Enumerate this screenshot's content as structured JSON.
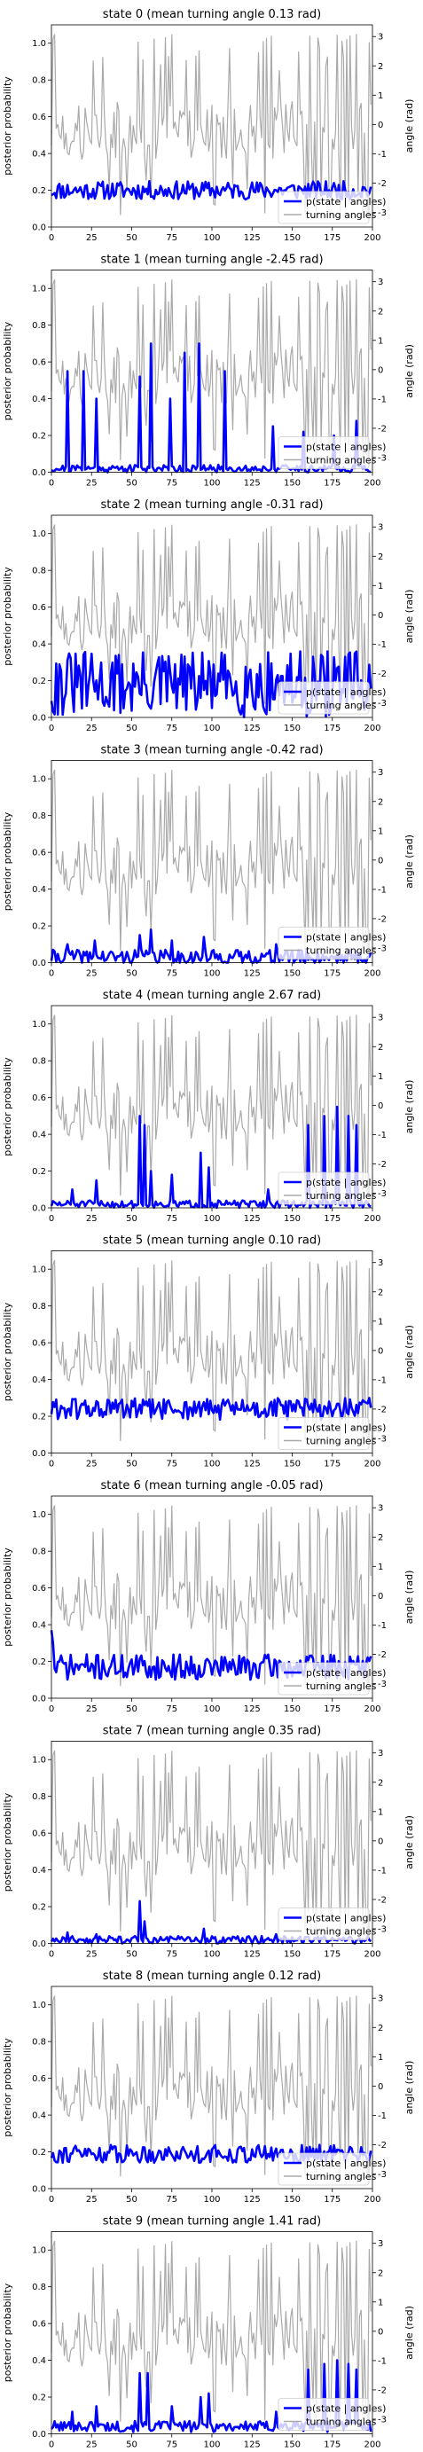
{
  "chart_data": [
    {
      "type": "line",
      "title": "state 0 (mean turning angle 0.13 rad)",
      "ylabel": "posterior probability",
      "y2label": "angle (rad)",
      "xlim": [
        0,
        200
      ],
      "ylim": [
        0,
        1.1
      ],
      "y2lim": [
        -3.5,
        3.4
      ],
      "xticks": [
        0,
        25,
        50,
        75,
        100,
        125,
        150,
        175,
        200
      ],
      "yticks": [
        0.0,
        0.2,
        0.4,
        0.6,
        0.8,
        1.0
      ],
      "y2ticks": [
        -3,
        -2,
        -1,
        0,
        1,
        2,
        3
      ],
      "legend": [
        "p(state | angles)",
        "turning angles"
      ],
      "series": [
        {
          "name": "p(state | angles)",
          "color": "#0000ff",
          "baseline": 0.2,
          "amplitude": 0.05,
          "seed": 11
        }
      ]
    },
    {
      "type": "line",
      "title": "state 1 (mean turning angle -2.45 rad)",
      "ylabel": "posterior probability",
      "y2label": "angle (rad)",
      "xlim": [
        0,
        200
      ],
      "ylim": [
        0,
        1.1
      ],
      "y2lim": [
        -3.5,
        3.4
      ],
      "xticks": [
        0,
        25,
        50,
        75,
        100,
        125,
        150,
        175,
        200
      ],
      "yticks": [
        0.0,
        0.2,
        0.4,
        0.6,
        0.8,
        1.0
      ],
      "y2ticks": [
        -3,
        -2,
        -1,
        0,
        1,
        2,
        3
      ],
      "legend": [
        "p(state | angles)",
        "turning angles"
      ],
      "series": [
        {
          "name": "p(state | angles)",
          "color": "#0000ff",
          "baseline": 0.02,
          "amplitude": 0.02,
          "seed": 21,
          "spikes": [
            [
              10,
              0.55
            ],
            [
              20,
              0.55
            ],
            [
              28,
              0.4
            ],
            [
              55,
              0.52
            ],
            [
              62,
              0.7
            ],
            [
              74,
              0.4
            ],
            [
              83,
              0.65
            ],
            [
              92,
              0.7
            ],
            [
              108,
              0.55
            ],
            [
              138,
              0.25
            ],
            [
              157,
              0.22
            ],
            [
              176,
              0.2
            ],
            [
              190,
              0.28
            ]
          ]
        }
      ]
    },
    {
      "type": "line",
      "title": "state 2 (mean turning angle -0.31 rad)",
      "ylabel": "posterior probability",
      "y2label": "angle (rad)",
      "xlim": [
        0,
        200
      ],
      "ylim": [
        0,
        1.1
      ],
      "y2lim": [
        -3.5,
        3.4
      ],
      "xticks": [
        0,
        25,
        50,
        75,
        100,
        125,
        150,
        175,
        200
      ],
      "yticks": [
        0.0,
        0.2,
        0.4,
        0.6,
        0.8,
        1.0
      ],
      "y2ticks": [
        -3,
        -2,
        -1,
        0,
        1,
        2,
        3
      ],
      "legend": [
        "p(state | angles)",
        "turning angles"
      ],
      "series": [
        {
          "name": "p(state | angles)",
          "color": "#0000ff",
          "baseline": 0.18,
          "amplitude": 0.18,
          "seed": 31
        }
      ]
    },
    {
      "type": "line",
      "title": "state 3 (mean turning angle -0.42 rad)",
      "ylabel": "posterior probability",
      "y2label": "angle (rad)",
      "xlim": [
        0,
        200
      ],
      "ylim": [
        0,
        1.1
      ],
      "y2lim": [
        -3.5,
        3.4
      ],
      "xticks": [
        0,
        25,
        50,
        75,
        100,
        125,
        150,
        175,
        200
      ],
      "yticks": [
        0.0,
        0.2,
        0.4,
        0.6,
        0.8,
        1.0
      ],
      "y2ticks": [
        -3,
        -2,
        -1,
        0,
        1,
        2,
        3
      ],
      "legend": [
        "p(state | angles)",
        "turning angles"
      ],
      "series": [
        {
          "name": "p(state | angles)",
          "color": "#0000ff",
          "baseline": 0.03,
          "amplitude": 0.04,
          "seed": 41,
          "spikes": [
            [
              10,
              0.1
            ],
            [
              27,
              0.12
            ],
            [
              55,
              0.15
            ],
            [
              62,
              0.18
            ],
            [
              75,
              0.12
            ],
            [
              95,
              0.14
            ],
            [
              140,
              0.1
            ]
          ]
        }
      ]
    },
    {
      "type": "line",
      "title": "state 4 (mean turning angle 2.67 rad)",
      "ylabel": "posterior probability",
      "y2label": "angle (rad)",
      "xlim": [
        0,
        200
      ],
      "ylim": [
        0,
        1.1
      ],
      "y2lim": [
        -3.5,
        3.4
      ],
      "xticks": [
        0,
        25,
        50,
        75,
        100,
        125,
        150,
        175,
        200
      ],
      "yticks": [
        0.0,
        0.2,
        0.4,
        0.6,
        0.8,
        1.0
      ],
      "y2ticks": [
        -3,
        -2,
        -1,
        0,
        1,
        2,
        3
      ],
      "legend": [
        "p(state | angles)",
        "turning angles"
      ],
      "series": [
        {
          "name": "p(state | angles)",
          "color": "#0000ff",
          "baseline": 0.02,
          "amplitude": 0.02,
          "seed": 51,
          "spikes": [
            [
              13,
              0.1
            ],
            [
              28,
              0.15
            ],
            [
              55,
              0.5
            ],
            [
              58,
              0.45
            ],
            [
              62,
              0.2
            ],
            [
              75,
              0.18
            ],
            [
              93,
              0.3
            ],
            [
              98,
              0.22
            ],
            [
              135,
              0.1
            ],
            [
              160,
              0.45
            ],
            [
              170,
              0.5
            ],
            [
              178,
              0.55
            ],
            [
              185,
              0.5
            ],
            [
              190,
              0.45
            ]
          ]
        }
      ]
    },
    {
      "type": "line",
      "title": "state 5 (mean turning angle 0.10 rad)",
      "ylabel": "posterior probability",
      "y2label": "angle (rad)",
      "xlim": [
        0,
        200
      ],
      "ylim": [
        0,
        1.1
      ],
      "y2lim": [
        -3.5,
        3.4
      ],
      "xticks": [
        0,
        25,
        50,
        75,
        100,
        125,
        150,
        175,
        200
      ],
      "yticks": [
        0.0,
        0.2,
        0.4,
        0.6,
        0.8,
        1.0
      ],
      "y2ticks": [
        -3,
        -2,
        -1,
        0,
        1,
        2,
        3
      ],
      "legend": [
        "p(state | angles)",
        "turning angles"
      ],
      "series": [
        {
          "name": "p(state | angles)",
          "color": "#0000ff",
          "baseline": 0.24,
          "amplitude": 0.06,
          "seed": 61
        }
      ]
    },
    {
      "type": "line",
      "title": "state 6 (mean turning angle -0.05 rad)",
      "ylabel": "posterior probability",
      "y2label": "angle (rad)",
      "xlim": [
        0,
        200
      ],
      "ylim": [
        0,
        1.1
      ],
      "y2lim": [
        -3.5,
        3.4
      ],
      "xticks": [
        0,
        25,
        50,
        75,
        100,
        125,
        150,
        175,
        200
      ],
      "yticks": [
        0.0,
        0.2,
        0.4,
        0.6,
        0.8,
        1.0
      ],
      "y2ticks": [
        -3,
        -2,
        -1,
        0,
        1,
        2,
        3
      ],
      "legend": [
        "p(state | angles)",
        "turning angles"
      ],
      "series": [
        {
          "name": "p(state | angles)",
          "color": "#0000ff",
          "baseline": 0.17,
          "amplitude": 0.07,
          "seed": 71,
          "spikes": [
            [
              0,
              0.37
            ],
            [
              1,
              0.3
            ]
          ]
        }
      ]
    },
    {
      "type": "line",
      "title": "state 7 (mean turning angle 0.35 rad)",
      "ylabel": "posterior probability",
      "y2label": "angle (rad)",
      "xlim": [
        0,
        200
      ],
      "ylim": [
        0,
        1.1
      ],
      "y2lim": [
        -3.5,
        3.4
      ],
      "xticks": [
        0,
        25,
        50,
        75,
        100,
        125,
        150,
        175,
        200
      ],
      "yticks": [
        0.0,
        0.2,
        0.4,
        0.6,
        0.8,
        1.0
      ],
      "y2ticks": [
        -3,
        -2,
        -1,
        0,
        1,
        2,
        3
      ],
      "legend": [
        "p(state | angles)",
        "turning angles"
      ],
      "series": [
        {
          "name": "p(state | angles)",
          "color": "#0000ff",
          "baseline": 0.02,
          "amplitude": 0.02,
          "seed": 81,
          "spikes": [
            [
              10,
              0.06
            ],
            [
              28,
              0.05
            ],
            [
              55,
              0.23
            ],
            [
              58,
              0.12
            ],
            [
              95,
              0.08
            ],
            [
              140,
              0.05
            ]
          ]
        }
      ]
    },
    {
      "type": "line",
      "title": "state 8 (mean turning angle 0.12 rad)",
      "ylabel": "posterior probability",
      "y2label": "angle (rad)",
      "xlim": [
        0,
        200
      ],
      "ylim": [
        0,
        1.1
      ],
      "y2lim": [
        -3.5,
        3.4
      ],
      "xticks": [
        0,
        25,
        50,
        75,
        100,
        125,
        150,
        175,
        200
      ],
      "yticks": [
        0.0,
        0.2,
        0.4,
        0.6,
        0.8,
        1.0
      ],
      "y2ticks": [
        -3,
        -2,
        -1,
        0,
        1,
        2,
        3
      ],
      "legend": [
        "p(state | angles)",
        "turning angles"
      ],
      "series": [
        {
          "name": "p(state | angles)",
          "color": "#0000ff",
          "baseline": 0.19,
          "amplitude": 0.05,
          "seed": 91
        }
      ]
    },
    {
      "type": "line",
      "title": "state 9 (mean turning angle 1.41 rad)",
      "ylabel": "posterior probability",
      "y2label": "angle (rad)",
      "xlim": [
        0,
        200
      ],
      "ylim": [
        0,
        1.1
      ],
      "y2lim": [
        -3.5,
        3.4
      ],
      "xticks": [
        0,
        25,
        50,
        75,
        100,
        125,
        150,
        175,
        200
      ],
      "yticks": [
        0.0,
        0.2,
        0.4,
        0.6,
        0.8,
        1.0
      ],
      "y2ticks": [
        -3,
        -2,
        -1,
        0,
        1,
        2,
        3
      ],
      "legend": [
        "p(state | angles)",
        "turning angles"
      ],
      "series": [
        {
          "name": "p(state | angles)",
          "color": "#0000ff",
          "baseline": 0.04,
          "amplitude": 0.03,
          "seed": 101,
          "spikes": [
            [
              13,
              0.12
            ],
            [
              28,
              0.15
            ],
            [
              55,
              0.33
            ],
            [
              60,
              0.33
            ],
            [
              75,
              0.15
            ],
            [
              93,
              0.2
            ],
            [
              98,
              0.22
            ],
            [
              140,
              0.12
            ],
            [
              160,
              0.35
            ],
            [
              170,
              0.38
            ],
            [
              178,
              0.4
            ],
            [
              185,
              0.38
            ],
            [
              190,
              0.35
            ]
          ]
        }
      ]
    }
  ],
  "turning_angles": {
    "name": "turning angles",
    "color": "#aaaaaa",
    "n": 200,
    "seed": 7
  }
}
